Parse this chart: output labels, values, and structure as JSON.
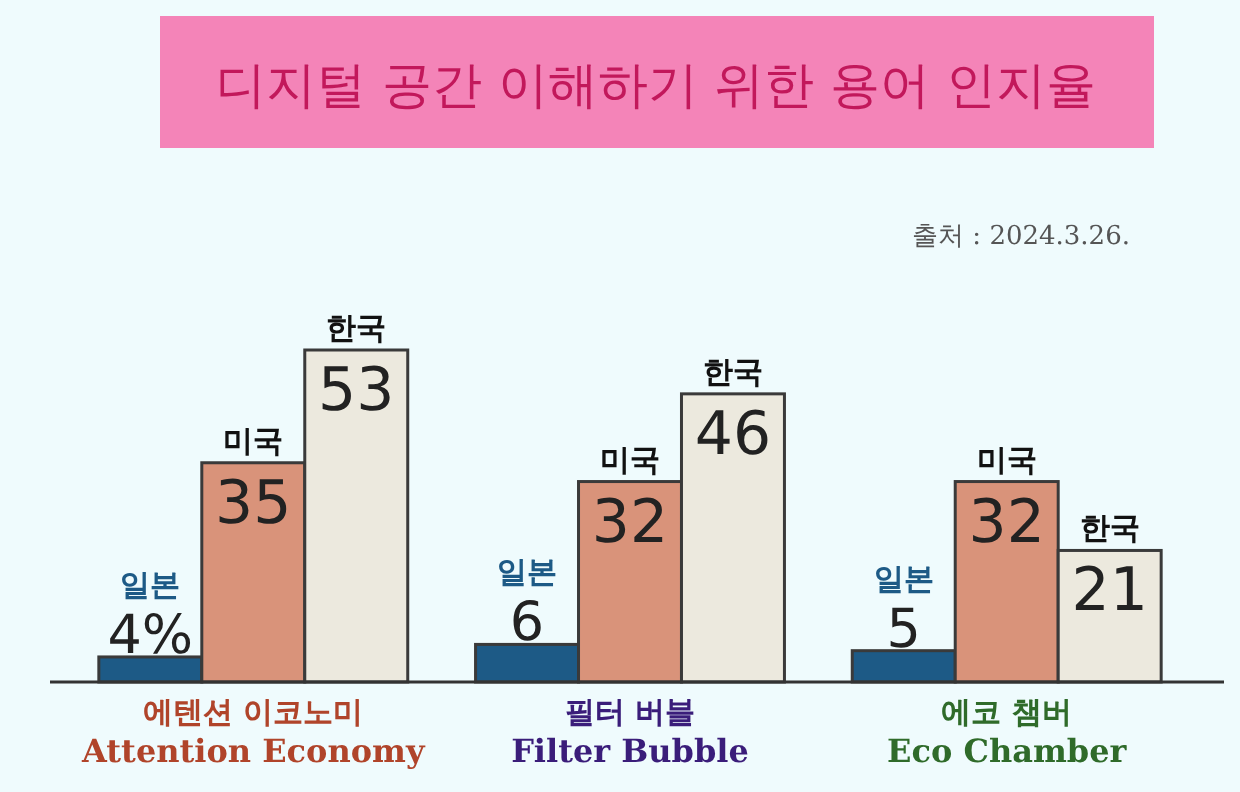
{
  "chart_data": {
    "type": "bar",
    "title": "디지털 공간 이해하기 위한 용어 인지율",
    "annotations": [
      "출처 : 2024.3.26."
    ],
    "categories": [
      "에텐션 이코노미\nAttention Economy",
      "필터 버블\nFilter Bubble",
      "에코 챔버\nEco Chamber"
    ],
    "series": [
      {
        "name": "일본",
        "color": "#1d5a86",
        "values": [
          4,
          6,
          5
        ],
        "value_labels": [
          "4%",
          "6",
          "5"
        ]
      },
      {
        "name": "미국",
        "color": "#d9937a",
        "values": [
          35,
          32,
          32
        ],
        "value_labels": [
          "35",
          "32",
          "32"
        ]
      },
      {
        "name": "한국",
        "color": "#ece9de",
        "values": [
          53,
          46,
          21
        ],
        "value_labels": [
          "53",
          "46",
          "21"
        ]
      }
    ]
  }
}
